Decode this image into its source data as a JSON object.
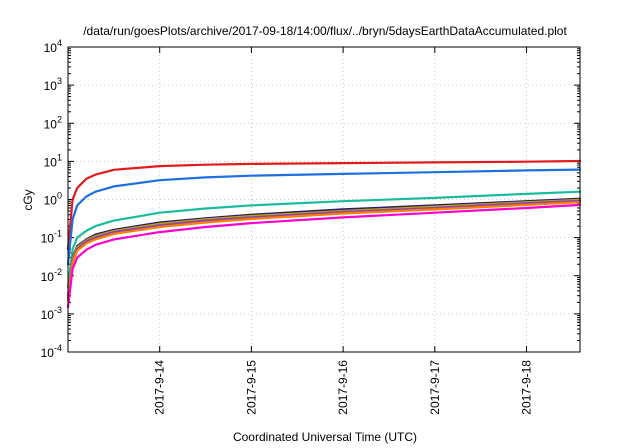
{
  "chart_data": {
    "type": "line",
    "title": "/data/run/goesPlots/archive/2017-09-18/14:00/flux/../bryn/5daysEarthDataAccumulated.plot",
    "xlabel": "Coordinated Universal Time (UTC)",
    "ylabel": "cGy",
    "x_unit": "days",
    "xlim": [
      "2017-09-13T00:00",
      "2017-09-18T14:00"
    ],
    "x_ticks": [
      "2017-9-14",
      "2017-9-15",
      "2017-9-16",
      "2017-9-17",
      "2017-9-18"
    ],
    "yscale": "log",
    "ylim": [
      0.0001,
      10000
    ],
    "y_ticks": [
      {
        "base": "10",
        "exp": "-4"
      },
      {
        "base": "10",
        "exp": "-3"
      },
      {
        "base": "10",
        "exp": "-2"
      },
      {
        "base": "10",
        "exp": "-1"
      },
      {
        "base": "10",
        "exp": "0"
      },
      {
        "base": "10",
        "exp": "1"
      },
      {
        "base": "10",
        "exp": "2"
      },
      {
        "base": "10",
        "exp": "3"
      },
      {
        "base": "10",
        "exp": "4"
      }
    ],
    "grid": true,
    "series": [
      {
        "color": "#e31a1c",
        "points": [
          [
            "2017-09-13T00:00",
            0.05
          ],
          [
            "2017-09-13T01:12",
            1.0
          ],
          [
            "2017-09-13T02:24",
            2.0
          ],
          [
            "2017-09-13T04:48",
            3.5
          ],
          [
            "2017-09-13T07:12",
            4.5
          ],
          [
            "2017-09-13T12:00",
            6.0
          ],
          [
            "2017-09-14T00:00",
            7.5
          ],
          [
            "2017-09-14T12:00",
            8.2
          ],
          [
            "2017-09-15T00:00",
            8.6
          ],
          [
            "2017-09-16T00:00",
            9.0
          ],
          [
            "2017-09-17T00:00",
            9.4
          ],
          [
            "2017-09-18T00:00",
            9.8
          ],
          [
            "2017-09-18T14:00",
            10.2
          ]
        ]
      },
      {
        "color": "#1f6fe0",
        "points": [
          [
            "2017-09-13T00:00",
            0.02
          ],
          [
            "2017-09-13T01:12",
            0.3
          ],
          [
            "2017-09-13T02:24",
            0.7
          ],
          [
            "2017-09-13T04:48",
            1.2
          ],
          [
            "2017-09-13T07:12",
            1.6
          ],
          [
            "2017-09-13T12:00",
            2.2
          ],
          [
            "2017-09-14T00:00",
            3.2
          ],
          [
            "2017-09-14T12:00",
            3.8
          ],
          [
            "2017-09-15T00:00",
            4.2
          ],
          [
            "2017-09-16T00:00",
            4.7
          ],
          [
            "2017-09-17T00:00",
            5.2
          ],
          [
            "2017-09-18T00:00",
            5.8
          ],
          [
            "2017-09-18T14:00",
            6.1
          ]
        ]
      },
      {
        "color": "#1abc9c",
        "points": [
          [
            "2017-09-13T00:00",
            0.005
          ],
          [
            "2017-09-13T01:12",
            0.05
          ],
          [
            "2017-09-13T02:24",
            0.1
          ],
          [
            "2017-09-13T04:48",
            0.15
          ],
          [
            "2017-09-13T07:12",
            0.2
          ],
          [
            "2017-09-13T12:00",
            0.28
          ],
          [
            "2017-09-14T00:00",
            0.45
          ],
          [
            "2017-09-14T12:00",
            0.58
          ],
          [
            "2017-09-15T00:00",
            0.7
          ],
          [
            "2017-09-16T00:00",
            0.9
          ],
          [
            "2017-09-17T00:00",
            1.1
          ],
          [
            "2017-09-18T00:00",
            1.4
          ],
          [
            "2017-09-18T14:00",
            1.6
          ]
        ]
      },
      {
        "color": "#2b1b6e",
        "points": [
          [
            "2017-09-13T00:00",
            0.003
          ],
          [
            "2017-09-13T01:12",
            0.03
          ],
          [
            "2017-09-13T02:24",
            0.06
          ],
          [
            "2017-09-13T04:48",
            0.09
          ],
          [
            "2017-09-13T07:12",
            0.12
          ],
          [
            "2017-09-13T12:00",
            0.16
          ],
          [
            "2017-09-14T00:00",
            0.25
          ],
          [
            "2017-09-14T12:00",
            0.32
          ],
          [
            "2017-09-15T00:00",
            0.4
          ],
          [
            "2017-09-16T00:00",
            0.55
          ],
          [
            "2017-09-17T00:00",
            0.7
          ],
          [
            "2017-09-18T00:00",
            0.9
          ],
          [
            "2017-09-18T14:00",
            1.05
          ]
        ]
      },
      {
        "color": "#b8a600",
        "points": [
          [
            "2017-09-13T00:00",
            0.003
          ],
          [
            "2017-09-13T01:12",
            0.028
          ],
          [
            "2017-09-13T02:24",
            0.055
          ],
          [
            "2017-09-13T04:48",
            0.085
          ],
          [
            "2017-09-13T07:12",
            0.11
          ],
          [
            "2017-09-13T12:00",
            0.15
          ],
          [
            "2017-09-14T00:00",
            0.23
          ],
          [
            "2017-09-14T12:00",
            0.3
          ],
          [
            "2017-09-15T00:00",
            0.37
          ],
          [
            "2017-09-16T00:00",
            0.5
          ],
          [
            "2017-09-17T00:00",
            0.65
          ],
          [
            "2017-09-18T00:00",
            0.85
          ],
          [
            "2017-09-18T14:00",
            0.98
          ]
        ]
      },
      {
        "color": "#8e44ad",
        "points": [
          [
            "2017-09-13T00:00",
            0.0025
          ],
          [
            "2017-09-13T01:12",
            0.025
          ],
          [
            "2017-09-13T02:24",
            0.05
          ],
          [
            "2017-09-13T04:48",
            0.08
          ],
          [
            "2017-09-13T07:12",
            0.1
          ],
          [
            "2017-09-13T12:00",
            0.14
          ],
          [
            "2017-09-14T00:00",
            0.21
          ],
          [
            "2017-09-14T12:00",
            0.28
          ],
          [
            "2017-09-15T00:00",
            0.34
          ],
          [
            "2017-09-16T00:00",
            0.47
          ],
          [
            "2017-09-17T00:00",
            0.6
          ],
          [
            "2017-09-18T00:00",
            0.8
          ],
          [
            "2017-09-18T14:00",
            0.92
          ]
        ]
      },
      {
        "color": "#ff7f00",
        "points": [
          [
            "2017-09-13T00:00",
            0.0022
          ],
          [
            "2017-09-13T01:12",
            0.022
          ],
          [
            "2017-09-13T02:24",
            0.045
          ],
          [
            "2017-09-13T04:48",
            0.07
          ],
          [
            "2017-09-13T07:12",
            0.09
          ],
          [
            "2017-09-13T12:00",
            0.125
          ],
          [
            "2017-09-14T00:00",
            0.19
          ],
          [
            "2017-09-14T12:00",
            0.25
          ],
          [
            "2017-09-15T00:00",
            0.31
          ],
          [
            "2017-09-16T00:00",
            0.43
          ],
          [
            "2017-09-17T00:00",
            0.55
          ],
          [
            "2017-09-18T00:00",
            0.72
          ],
          [
            "2017-09-18T14:00",
            0.85
          ]
        ]
      },
      {
        "color": "#ff00cc",
        "points": [
          [
            "2017-09-13T00:00",
            0.0015
          ],
          [
            "2017-09-13T01:12",
            0.015
          ],
          [
            "2017-09-13T02:24",
            0.03
          ],
          [
            "2017-09-13T04:48",
            0.048
          ],
          [
            "2017-09-13T07:12",
            0.065
          ],
          [
            "2017-09-13T12:00",
            0.09
          ],
          [
            "2017-09-14T00:00",
            0.14
          ],
          [
            "2017-09-14T12:00",
            0.19
          ],
          [
            "2017-09-15T00:00",
            0.24
          ],
          [
            "2017-09-16T00:00",
            0.34
          ],
          [
            "2017-09-17T00:00",
            0.45
          ],
          [
            "2017-09-18T00:00",
            0.6
          ],
          [
            "2017-09-18T14:00",
            0.72
          ]
        ]
      }
    ]
  }
}
